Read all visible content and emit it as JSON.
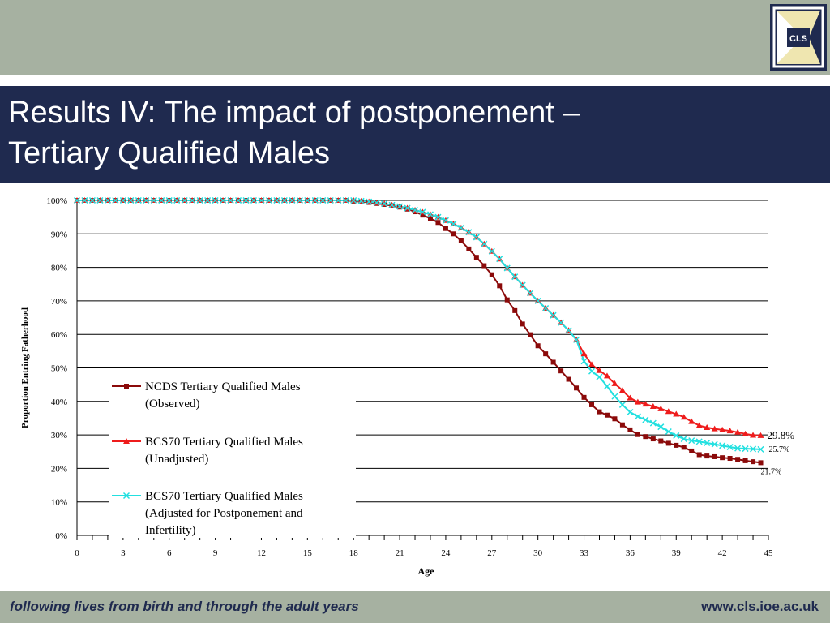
{
  "slide": {
    "title_line1": "Results IV: The impact of postponement –",
    "title_line2": "Tertiary Qualified Males",
    "logo_text": "CLS",
    "footer_left": "following lives from birth and through the adult years",
    "footer_right": "www.cls.ioe.ac.uk"
  },
  "colors": {
    "header_bg": "#a6b1a1",
    "title_bg": "#1f2a4f",
    "logo_accent": "#efe6b0",
    "series_ncds": "#8b0a0a",
    "series_bcs_unadj": "#ee1c1c",
    "series_bcs_adj": "#22e0e0"
  },
  "chart_data": {
    "type": "line",
    "xlabel": "Age",
    "ylabel": "Proportion Entring Fatherhood",
    "xlim": [
      0,
      45
    ],
    "ylim": [
      0,
      100
    ],
    "x_ticks": [
      "0",
      "3",
      "6",
      "9",
      "12",
      "15",
      "18",
      "21",
      "24",
      "27",
      "30",
      "33",
      "36",
      "39",
      "42",
      "45"
    ],
    "y_ticks": [
      "0%",
      "10%",
      "20%",
      "30%",
      "40%",
      "50%",
      "60%",
      "70%",
      "80%",
      "90%",
      "100%"
    ],
    "grid": true,
    "legend_position": "bottom-left",
    "x": [
      0,
      0.5,
      1,
      1.5,
      2,
      2.5,
      3,
      3.5,
      4,
      4.5,
      5,
      5.5,
      6,
      6.5,
      7,
      7.5,
      8,
      8.5,
      9,
      9.5,
      10,
      10.5,
      11,
      11.5,
      12,
      12.5,
      13,
      13.5,
      14,
      14.5,
      15,
      15.5,
      16,
      16.5,
      17,
      17.5,
      18,
      18.5,
      19,
      19.5,
      20,
      20.5,
      21,
      21.5,
      22,
      22.5,
      23,
      23.5,
      24,
      24.5,
      25,
      25.5,
      26,
      26.5,
      27,
      27.5,
      28,
      28.5,
      29,
      29.5,
      30,
      30.5,
      31,
      31.5,
      32,
      32.5,
      33,
      33.5,
      34,
      34.5,
      35,
      35.5,
      36,
      36.5,
      37,
      37.5,
      38,
      38.5,
      39,
      39.5,
      40,
      40.5,
      41,
      41.5,
      42,
      42.5,
      43,
      43.5,
      44,
      44.5
    ],
    "series": [
      {
        "name": "NCDS Tertiary Qualified Males (Observed)",
        "color": "#8b0a0a",
        "marker": "square",
        "values": [
          100,
          100,
          100,
          100,
          100,
          100,
          100,
          100,
          100,
          100,
          100,
          100,
          100,
          100,
          100,
          100,
          100,
          100,
          100,
          100,
          100,
          100,
          100,
          100,
          100,
          100,
          100,
          100,
          100,
          100,
          100,
          100,
          100,
          100,
          100,
          100,
          99.8,
          99.6,
          99.4,
          99.1,
          98.8,
          98.4,
          98.0,
          97.4,
          96.6,
          95.6,
          94.6,
          93.4,
          91.6,
          90.0,
          87.9,
          85.5,
          83.0,
          80.5,
          77.8,
          74.5,
          70.3,
          67.1,
          63.1,
          59.9,
          56.6,
          54.2,
          51.7,
          49.1,
          46.6,
          44.0,
          41.2,
          39.0,
          36.9,
          35.9,
          34.8,
          33.0,
          31.5,
          30.1,
          29.5,
          28.8,
          28.2,
          27.5,
          26.9,
          26.3,
          25.2,
          24.1,
          23.7,
          23.5,
          23.2,
          23.0,
          22.7,
          22.3,
          22.0,
          21.7
        ]
      },
      {
        "name": "BCS70 Tertiary Qualified Males (Unadjusted)",
        "color": "#ee1c1c",
        "marker": "triangle",
        "values": [
          100,
          100,
          100,
          100,
          100,
          100,
          100,
          100,
          100,
          100,
          100,
          100,
          100,
          100,
          100,
          100,
          100,
          100,
          100,
          100,
          100,
          100,
          100,
          100,
          100,
          100,
          100,
          100,
          100,
          100,
          100,
          100,
          100,
          100,
          100,
          100,
          100,
          99.8,
          99.6,
          99.3,
          99.0,
          98.6,
          98.2,
          97.7,
          97.1,
          96.5,
          95.8,
          95.0,
          94.0,
          93.0,
          91.8,
          90.5,
          89.0,
          87.0,
          84.8,
          82.5,
          79.8,
          77.2,
          74.7,
          72.3,
          70.0,
          67.8,
          65.7,
          63.5,
          61.2,
          58.4,
          54.2,
          51.0,
          49.2,
          47.6,
          45.3,
          43.3,
          41.0,
          39.8,
          39.2,
          38.5,
          37.8,
          37.0,
          36.2,
          35.3,
          34.0,
          32.8,
          32.2,
          31.8,
          31.5,
          31.2,
          30.8,
          30.3,
          29.9,
          29.8
        ]
      },
      {
        "name": "BCS70 Tertiary Qualified Males (Adjusted for Postponement and Infertility)",
        "color": "#22e0e0",
        "marker": "cross",
        "values": [
          100,
          100,
          100,
          100,
          100,
          100,
          100,
          100,
          100,
          100,
          100,
          100,
          100,
          100,
          100,
          100,
          100,
          100,
          100,
          100,
          100,
          100,
          100,
          100,
          100,
          100,
          100,
          100,
          100,
          100,
          100,
          100,
          100,
          100,
          100,
          100,
          100,
          99.8,
          99.6,
          99.3,
          99.0,
          98.6,
          98.2,
          97.7,
          97.1,
          96.5,
          95.8,
          95.0,
          94.0,
          93.0,
          91.8,
          90.5,
          89.0,
          87.0,
          84.8,
          82.5,
          79.8,
          77.2,
          74.7,
          72.3,
          70.0,
          67.8,
          65.7,
          63.5,
          61.2,
          58.4,
          52.0,
          49.0,
          47.3,
          44.5,
          41.5,
          39.0,
          36.8,
          35.5,
          34.5,
          33.5,
          32.4,
          31.0,
          29.8,
          28.8,
          28.3,
          28.0,
          27.6,
          27.2,
          26.8,
          26.4,
          26.0,
          25.9,
          25.8,
          25.7
        ]
      }
    ],
    "end_labels": [
      "29.8%",
      "25.7%",
      "21.7%"
    ]
  }
}
